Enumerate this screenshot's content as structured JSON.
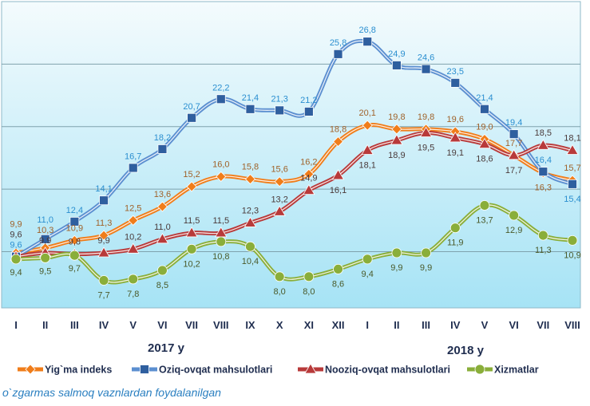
{
  "chart_data": {
    "type": "line",
    "categories": [
      "I",
      "II",
      "III",
      "IV",
      "V",
      "VI",
      "VII",
      "VIII",
      "IX",
      "X",
      "XI",
      "XII",
      "I",
      "II",
      "III",
      "IV",
      "V",
      "VI",
      "VII",
      "VIII"
    ],
    "year_labels": [
      "2017 y",
      "2018 y"
    ],
    "ylim": [
      5.5,
      30
    ],
    "gridlines": [
      10,
      15,
      20,
      25
    ],
    "grid": true,
    "legend_position": "bottom",
    "series": [
      {
        "name": "Yig`ma indeks",
        "color": "#f07d1a",
        "marker": "diamond",
        "label_color": "#a0622a",
        "values": [
          9.9,
          10.3,
          10.9,
          11.3,
          12.5,
          13.6,
          15.2,
          16.0,
          15.8,
          15.6,
          16.2,
          18.8,
          20.1,
          19.8,
          19.8,
          19.6,
          19.0,
          17.7,
          16.3,
          15.7
        ]
      },
      {
        "name": "Oziq-ovqat mahsulotlari",
        "color": "#5b8fd0",
        "marker": "square",
        "label_color": "#2b8fd0",
        "values": [
          9.6,
          11.0,
          12.4,
          14.1,
          16.7,
          18.2,
          20.7,
          22.2,
          21.4,
          21.3,
          21.2,
          25.8,
          26.8,
          24.9,
          24.6,
          23.5,
          21.4,
          19.4,
          16.4,
          15.4
        ]
      },
      {
        "name": "Nooziq-ovqat mahsulotlari",
        "color": "#b83a3a",
        "marker": "triangle",
        "label_color": "#4a3a3a",
        "values": [
          9.6,
          9.9,
          9.8,
          9.9,
          10.2,
          11.0,
          11.5,
          11.5,
          12.3,
          13.2,
          14.9,
          16.1,
          18.1,
          18.9,
          19.5,
          19.1,
          18.6,
          17.7,
          18.5,
          18.1
        ]
      },
      {
        "name": "Xizmatlar",
        "color": "#8aae3a",
        "marker": "circle",
        "label_color": "#4a5a2a",
        "values": [
          9.4,
          9.5,
          9.7,
          7.7,
          7.8,
          8.5,
          10.2,
          10.8,
          10.4,
          8.0,
          8.0,
          8.6,
          9.4,
          9.9,
          9.9,
          11.9,
          13.7,
          12.9,
          11.3,
          10.9
        ]
      }
    ]
  },
  "footnote": "o`zgarmas salmoq vaznlardan foydalanilgan"
}
